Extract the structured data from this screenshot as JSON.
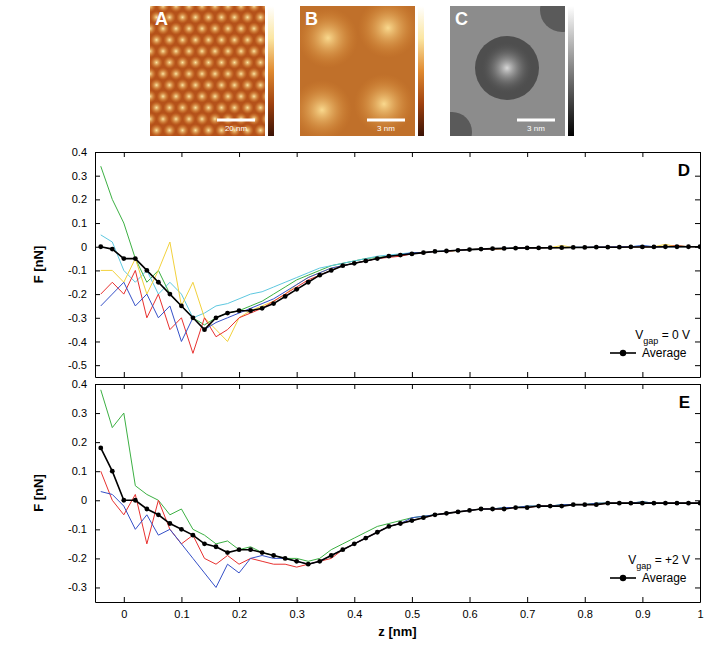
{
  "images": [
    {
      "label": "A",
      "scale_bar": "20 nm"
    },
    {
      "label": "B",
      "scale_bar": "3 nm"
    },
    {
      "label": "C",
      "scale_bar": "3 nm"
    }
  ],
  "chart_data": [
    {
      "type": "line",
      "panel": "D",
      "y_label": "F [nN]",
      "tick_labels": "y",
      "legend": "lower right",
      "annotation": [
        "V",
        "gap",
        " = 0 V"
      ],
      "x": [
        -0.04,
        -0.02,
        0,
        0.02,
        0.04,
        0.06,
        0.08,
        0.1,
        0.12,
        0.14,
        0.16,
        0.18,
        0.2,
        0.22,
        0.24,
        0.26,
        0.28,
        0.3,
        0.32,
        0.34,
        0.36,
        0.38,
        0.4,
        0.42,
        0.44,
        0.46,
        0.48,
        0.5,
        0.52,
        0.54,
        0.56,
        0.58,
        0.6,
        0.62,
        0.64,
        0.66,
        0.68,
        0.7,
        0.72,
        0.74,
        0.76,
        0.78,
        0.8,
        0.82,
        0.84,
        0.86,
        0.88,
        0.9,
        0.92,
        0.94,
        0.96,
        0.98,
        1.0
      ],
      "xlim": [
        -0.05,
        1.0
      ],
      "xticks": [
        0,
        0.1,
        0.2,
        0.3,
        0.4,
        0.5,
        0.6,
        0.7,
        0.8,
        0.9,
        1
      ],
      "ylim": [
        -0.55,
        0.4
      ],
      "yticks": [
        -0.5,
        -0.4,
        -0.3,
        -0.2,
        -0.1,
        0,
        0.1,
        0.2,
        0.3,
        0.4
      ],
      "series": [
        {
          "color": "#3cb043",
          "values": [
            0.34,
            0.2,
            0.1,
            -0.05,
            -0.15,
            -0.1,
            -0.2,
            -0.25,
            -0.3,
            -0.33,
            -0.3,
            -0.28,
            -0.27,
            -0.25,
            -0.23,
            -0.2,
            -0.17,
            -0.14,
            -0.12,
            -0.1,
            -0.08,
            -0.07,
            -0.06,
            -0.05,
            -0.045,
            -0.04,
            -0.035,
            -0.03,
            -0.025,
            -0.02,
            -0.02,
            -0.015,
            -0.012,
            -0.01,
            -0.01,
            -0.008,
            -0.006,
            -0.005,
            -0.005,
            -0.004,
            -0.004,
            -0.003,
            -0.003,
            -0.002,
            -0.002,
            -0.001,
            -0.001,
            0,
            0,
            0,
            0.005,
            0,
            0
          ]
        },
        {
          "color": "#5ec8e0",
          "values": [
            0.05,
            0.02,
            -0.1,
            -0.15,
            -0.1,
            -0.2,
            -0.15,
            -0.2,
            -0.3,
            -0.28,
            -0.25,
            -0.24,
            -0.22,
            -0.2,
            -0.19,
            -0.17,
            -0.15,
            -0.13,
            -0.11,
            -0.09,
            -0.08,
            -0.07,
            -0.06,
            -0.05,
            -0.04,
            -0.035,
            -0.03,
            -0.025,
            -0.025,
            -0.02,
            -0.018,
            -0.015,
            -0.012,
            -0.01,
            -0.008,
            -0.007,
            -0.006,
            -0.005,
            -0.004,
            -0.004,
            -0.003,
            -0.002,
            -0.002,
            -0.001,
            -0.001,
            0,
            0,
            0.005,
            0,
            0,
            0,
            0,
            0
          ]
        },
        {
          "color": "#f2d13c",
          "values": [
            -0.1,
            -0.1,
            -0.15,
            -0.05,
            -0.2,
            -0.1,
            0.02,
            -0.25,
            -0.15,
            -0.3,
            -0.35,
            -0.4,
            -0.3,
            -0.27,
            -0.25,
            -0.23,
            -0.2,
            -0.16,
            -0.13,
            -0.11,
            -0.09,
            -0.08,
            -0.07,
            -0.06,
            -0.05,
            -0.04,
            -0.035,
            -0.03,
            -0.025,
            -0.02,
            -0.02,
            -0.015,
            -0.012,
            -0.01,
            -0.01,
            -0.008,
            -0.006,
            -0.005,
            -0.004,
            -0.004,
            0.005,
            -0.003,
            -0.002,
            -0.002,
            -0.001,
            -0.001,
            0,
            0,
            0,
            0.01,
            0,
            0,
            0
          ]
        },
        {
          "color": "#e8312f",
          "values": [
            -0.2,
            -0.15,
            -0.2,
            -0.1,
            -0.3,
            -0.2,
            -0.35,
            -0.3,
            -0.45,
            -0.3,
            -0.38,
            -0.35,
            -0.3,
            -0.28,
            -0.26,
            -0.23,
            -0.2,
            -0.17,
            -0.14,
            -0.12,
            -0.1,
            -0.08,
            -0.07,
            -0.06,
            -0.05,
            -0.045,
            -0.04,
            -0.03,
            -0.025,
            -0.02,
            -0.02,
            -0.015,
            -0.012,
            -0.01,
            -0.01,
            -0.008,
            -0.006,
            -0.005,
            -0.005,
            -0.004,
            -0.004,
            -0.003,
            -0.003,
            -0.002,
            -0.002,
            -0.001,
            -0.001,
            0,
            0,
            0,
            0.005,
            0,
            0
          ]
        },
        {
          "color": "#3550c8",
          "values": [
            -0.25,
            -0.2,
            -0.15,
            -0.25,
            -0.2,
            -0.3,
            -0.25,
            -0.4,
            -0.3,
            -0.35,
            -0.32,
            -0.3,
            -0.28,
            -0.26,
            -0.24,
            -0.22,
            -0.19,
            -0.16,
            -0.13,
            -0.11,
            -0.09,
            -0.08,
            -0.07,
            -0.06,
            -0.05,
            -0.04,
            -0.035,
            -0.025,
            -0.025,
            -0.02,
            -0.018,
            -0.015,
            -0.012,
            -0.01,
            -0.008,
            -0.007,
            -0.006,
            -0.005,
            -0.004,
            -0.004,
            -0.003,
            -0.002,
            -0.002,
            -0.001,
            -0.001,
            0,
            0,
            0.005,
            0,
            0,
            0,
            0,
            0
          ]
        },
        {
          "name": "Average",
          "color": "#000000",
          "marker": "circle",
          "values": [
            0,
            -0.01,
            -0.05,
            -0.05,
            -0.1,
            -0.15,
            -0.2,
            -0.25,
            -0.3,
            -0.35,
            -0.3,
            -0.28,
            -0.27,
            -0.27,
            -0.26,
            -0.24,
            -0.21,
            -0.18,
            -0.15,
            -0.12,
            -0.1,
            -0.08,
            -0.07,
            -0.06,
            -0.05,
            -0.04,
            -0.035,
            -0.03,
            -0.025,
            -0.02,
            -0.018,
            -0.015,
            -0.012,
            -0.01,
            -0.008,
            -0.007,
            -0.006,
            -0.005,
            -0.005,
            -0.004,
            -0.004,
            -0.003,
            -0.003,
            -0.002,
            -0.002,
            -0.002,
            -0.001,
            -0.001,
            -0.001,
            0,
            0,
            0,
            0
          ]
        }
      ]
    },
    {
      "type": "line",
      "panel": "E",
      "x_label": "z [nm]",
      "y_label": "F [nN]",
      "legend": "lower right",
      "annotation": [
        "V",
        "gap",
        " = +2 V"
      ],
      "x": [
        -0.04,
        -0.02,
        0,
        0.02,
        0.04,
        0.06,
        0.08,
        0.1,
        0.12,
        0.14,
        0.16,
        0.18,
        0.2,
        0.22,
        0.24,
        0.26,
        0.28,
        0.3,
        0.32,
        0.34,
        0.36,
        0.38,
        0.4,
        0.42,
        0.44,
        0.46,
        0.48,
        0.5,
        0.52,
        0.54,
        0.56,
        0.58,
        0.6,
        0.62,
        0.64,
        0.66,
        0.68,
        0.7,
        0.72,
        0.74,
        0.76,
        0.78,
        0.8,
        0.82,
        0.84,
        0.86,
        0.88,
        0.9,
        0.92,
        0.94,
        0.96,
        0.98,
        1.0
      ],
      "xlim": [
        -0.05,
        1.0
      ],
      "xticks": [
        0,
        0.1,
        0.2,
        0.3,
        0.4,
        0.5,
        0.6,
        0.7,
        0.8,
        0.9,
        1
      ],
      "ylim": [
        -0.35,
        0.4
      ],
      "yticks": [
        -0.3,
        -0.2,
        -0.1,
        0,
        0.1,
        0.2,
        0.3,
        0.4
      ],
      "series": [
        {
          "color": "#3cb043",
          "values": [
            0.38,
            0.25,
            0.3,
            0.05,
            0.02,
            0,
            -0.05,
            -0.03,
            -0.1,
            -0.12,
            -0.15,
            -0.14,
            -0.17,
            -0.16,
            -0.18,
            -0.19,
            -0.2,
            -0.2,
            -0.21,
            -0.2,
            -0.17,
            -0.15,
            -0.13,
            -0.11,
            -0.09,
            -0.08,
            -0.07,
            -0.06,
            -0.055,
            -0.05,
            -0.045,
            -0.04,
            -0.035,
            -0.03,
            -0.03,
            -0.025,
            -0.025,
            -0.02,
            -0.02,
            -0.02,
            -0.015,
            -0.015,
            -0.015,
            -0.01,
            -0.01,
            -0.01,
            -0.01,
            -0.005,
            -0.01,
            -0.01,
            -0.01,
            -0.01,
            -0.01
          ]
        },
        {
          "color": "#e8312f",
          "values": [
            0.1,
            0,
            -0.05,
            0.02,
            -0.15,
            0,
            -0.1,
            -0.15,
            -0.12,
            -0.2,
            -0.22,
            -0.19,
            -0.22,
            -0.2,
            -0.21,
            -0.22,
            -0.22,
            -0.23,
            -0.22,
            -0.21,
            -0.2,
            -0.17,
            -0.15,
            -0.13,
            -0.11,
            -0.09,
            -0.08,
            -0.07,
            -0.06,
            -0.05,
            -0.045,
            -0.04,
            -0.035,
            -0.03,
            -0.03,
            -0.03,
            -0.025,
            -0.025,
            -0.02,
            -0.02,
            -0.02,
            -0.015,
            -0.015,
            -0.015,
            -0.01,
            -0.01,
            -0.01,
            -0.01,
            -0.01,
            -0.01,
            -0.01,
            -0.01,
            -0.01
          ]
        },
        {
          "color": "#3550c8",
          "values": [
            0.03,
            0.02,
            -0.02,
            -0.1,
            -0.05,
            -0.12,
            -0.1,
            -0.15,
            -0.2,
            -0.25,
            -0.3,
            -0.22,
            -0.25,
            -0.2,
            -0.19,
            -0.2,
            -0.2,
            -0.21,
            -0.22,
            -0.21,
            -0.19,
            -0.17,
            -0.15,
            -0.13,
            -0.11,
            -0.09,
            -0.08,
            -0.06,
            -0.055,
            -0.05,
            -0.045,
            -0.04,
            -0.035,
            -0.03,
            -0.03,
            -0.025,
            -0.025,
            -0.02,
            -0.02,
            -0.02,
            -0.015,
            -0.015,
            -0.015,
            -0.01,
            -0.01,
            -0.01,
            -0.01,
            -0.005,
            -0.01,
            -0.01,
            -0.01,
            -0.01,
            -0.01
          ]
        },
        {
          "name": "Average",
          "color": "#000000",
          "marker": "circle",
          "values": [
            0.18,
            0.1,
            0,
            0,
            -0.03,
            -0.05,
            -0.08,
            -0.1,
            -0.12,
            -0.15,
            -0.16,
            -0.18,
            -0.17,
            -0.17,
            -0.18,
            -0.19,
            -0.2,
            -0.21,
            -0.22,
            -0.21,
            -0.19,
            -0.17,
            -0.15,
            -0.13,
            -0.11,
            -0.09,
            -0.08,
            -0.07,
            -0.06,
            -0.05,
            -0.045,
            -0.04,
            -0.035,
            -0.03,
            -0.03,
            -0.03,
            -0.025,
            -0.025,
            -0.02,
            -0.02,
            -0.02,
            -0.015,
            -0.015,
            -0.015,
            -0.01,
            -0.01,
            -0.01,
            -0.01,
            -0.01,
            -0.01,
            -0.01,
            -0.01,
            -0.01
          ]
        }
      ]
    }
  ]
}
